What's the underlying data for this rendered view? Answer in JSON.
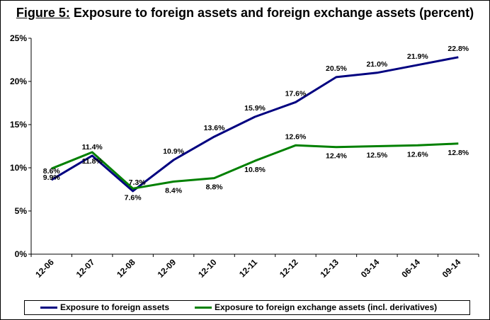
{
  "chart_data": {
    "type": "line",
    "title_prefix": "Figure 5:",
    "title_main": " Exposure to foreign assets and foreign exchange assets (percent)",
    "categories": [
      "12-06",
      "12-07",
      "12-08",
      "12-09",
      "12-10",
      "12-11",
      "12-12",
      "12-13",
      "03-14",
      "06-14",
      "09-14"
    ],
    "ylim": [
      0,
      25
    ],
    "yticks": [
      "0%",
      "5%",
      "10%",
      "15%",
      "20%",
      "25%"
    ],
    "grid": false,
    "legend_position": "bottom",
    "series": [
      {
        "name": "Exposure to foreign assets",
        "color": "#000080",
        "values": [
          8.6,
          11.4,
          7.3,
          10.9,
          13.6,
          15.9,
          17.6,
          20.5,
          21.0,
          21.9,
          22.8
        ],
        "labels": [
          "8.6%",
          "11.4%",
          "7.3%",
          "10.9%",
          "13.6%",
          "15.9%",
          "17.6%",
          "20.5%",
          "21.0%",
          "21.9%",
          "22.8%"
        ]
      },
      {
        "name": "Exposure to foreign exchange assets (incl. derivatives)",
        "color": "#008000",
        "values": [
          9.9,
          11.8,
          7.6,
          8.4,
          8.8,
          10.8,
          12.6,
          12.4,
          12.5,
          12.6,
          12.8
        ],
        "labels": [
          "9.9%",
          "11.8%",
          "7.6%",
          "8.4%",
          "8.8%",
          "10.8%",
          "12.6%",
          "12.4%",
          "12.5%",
          "12.6%",
          "12.8%"
        ]
      }
    ]
  }
}
